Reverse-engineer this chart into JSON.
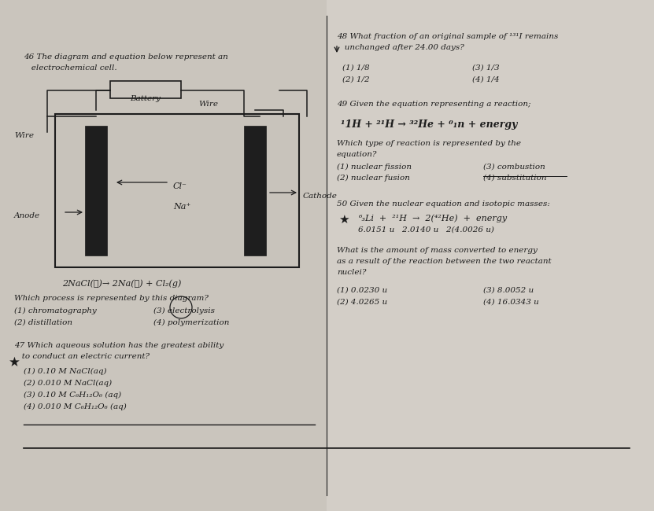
{
  "bg_color": "#d4cfc8",
  "bg_left": "#cdc8c0",
  "bg_right": "#cec9c2",
  "text_color": "#1c1c1c",
  "title_q46": "46 The diagram and equation below represent an",
  "title_q46b": "   electrochemical cell.",
  "battery_label": "Battery",
  "wire_label_right": "Wire",
  "wire_label_left": "Wire",
  "anode_label": "Anode",
  "cathode_label": "Cathode",
  "cl_label": "Cl⁻",
  "na_label": "Na⁺",
  "equation_below": "2NaCl(ℓ)→ 2Na(ℓ) + Cl₂(g)",
  "q46_which": "Which process is represented by this diagram?",
  "q46_opt1": "(1) chromatography",
  "q46_opt3": "(3) electrolysis",
  "q46_opt2": "(2) distillation",
  "q46_opt4": "(4) polymerization",
  "q47_title": "47 Which aqueous solution has the greatest ability",
  "q47_title2": "   to conduct an electric current?",
  "q47_opt1": "(1) 0.10 M NaCl(aq)",
  "q47_opt2": "(2) 0.010 M NaCl(aq)",
  "q47_opt3": "(3) 0.10 M C₆H₁₂O₆ (aq)",
  "q47_opt4": "(4) 0.010 M C₆H₁₂O₆ (aq)",
  "q48_line1": "48 What fraction of an original sample of ¹³¹I remains",
  "q48_line2": "   unchanged after 24.00 days?",
  "q48_opt1": "(1) 1/8",
  "q48_opt2": "(2) 1/2",
  "q48_opt3": "(3) 1/3",
  "q48_opt4": "(4) 1/4",
  "q49_title": "49 Given the equation representing a reaction;",
  "q49_eq": "¹1H + ²¹H → ³²He + ⁰₁n + energy",
  "q49_which": "Which type of reaction is represented by the",
  "q49_which2": "equation?",
  "q49_opt1": "(1) nuclear fission",
  "q49_opt3": "(3) combustion",
  "q49_opt2": "(2) nuclear fusion",
  "q49_opt4": "(4) substitution",
  "q50_title": "50 Given the nuclear equation and isotopic masses:",
  "q50_eq": "⁶₃Li  +  ²¹H  →  2(⁴²He)  +  energy",
  "q50_masses": "6.0151 u   2.0140 u   2(4.0026 u)",
  "q50_text1": "What is the amount of mass converted to energy",
  "q50_text2": "as a result of the reaction between the two reactant",
  "q50_text3": "nuclei?",
  "q50_opt1": "(1) 0.0230 u",
  "q50_opt3": "(3) 8.0052 u",
  "q50_opt2": "(2) 4.0265 u",
  "q50_opt4": "(4) 16.0343 u"
}
